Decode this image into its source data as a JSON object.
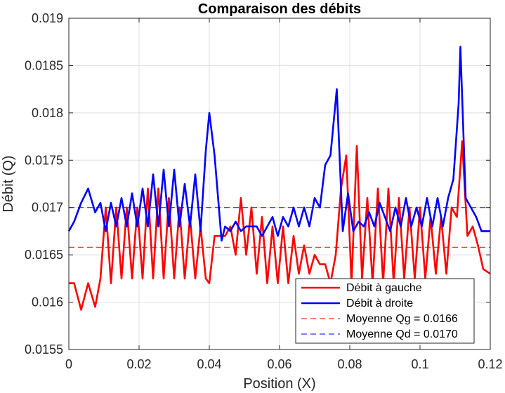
{
  "chart_data": {
    "type": "line",
    "title": "Comparaison des débits",
    "xlabel": "Position (X)",
    "ylabel": "Débit (Q)",
    "xlim": [
      0,
      0.12
    ],
    "ylim": [
      0.0155,
      0.019
    ],
    "xticks": [
      0,
      0.02,
      0.04,
      0.06,
      0.08,
      0.1,
      0.12
    ],
    "xtick_labels": [
      "0",
      "0.02",
      "0.04",
      "0.06",
      "0.08",
      "0.1",
      "0.12"
    ],
    "yticks": [
      0.0155,
      0.016,
      0.0165,
      0.017,
      0.0175,
      0.018,
      0.0185,
      0.019
    ],
    "ytick_labels": [
      "0.0155",
      "0.016",
      "0.0165",
      "0.017",
      "0.0175",
      "0.018",
      "0.0185",
      "0.019"
    ],
    "grid": true,
    "legend_position": "bottom-right",
    "series": [
      {
        "name": "Débit à gauche",
        "color": "#ff0000",
        "style": "solid",
        "x": [
          0,
          0.0015,
          0.0035,
          0.0055,
          0.0075,
          0.009,
          0.0105,
          0.012,
          0.0135,
          0.015,
          0.0165,
          0.018,
          0.0195,
          0.021,
          0.0225,
          0.024,
          0.0255,
          0.027,
          0.0285,
          0.03,
          0.0315,
          0.033,
          0.0345,
          0.036,
          0.0375,
          0.039,
          0.04,
          0.0415,
          0.043,
          0.0445,
          0.046,
          0.0475,
          0.049,
          0.0505,
          0.052,
          0.0535,
          0.055,
          0.0565,
          0.058,
          0.0595,
          0.061,
          0.0625,
          0.064,
          0.0655,
          0.067,
          0.0685,
          0.07,
          0.0715,
          0.073,
          0.0745,
          0.076,
          0.0775,
          0.079,
          0.0805,
          0.082,
          0.0835,
          0.085,
          0.0865,
          0.088,
          0.0895,
          0.091,
          0.0925,
          0.094,
          0.0955,
          0.097,
          0.0985,
          0.1,
          0.1015,
          0.103,
          0.1045,
          0.106,
          0.1075,
          0.109,
          0.1105,
          0.112,
          0.1135,
          0.115,
          0.1165,
          0.118,
          0.12
        ],
        "y": [
          0.0162,
          0.0162,
          0.01592,
          0.0162,
          0.01595,
          0.01625,
          0.017,
          0.0162,
          0.017,
          0.01625,
          0.017,
          0.01625,
          0.017,
          0.01625,
          0.0172,
          0.01625,
          0.0172,
          0.01625,
          0.0171,
          0.01625,
          0.017,
          0.01625,
          0.0169,
          0.01625,
          0.0168,
          0.01625,
          0.0162,
          0.0167,
          0.0167,
          0.0167,
          0.0168,
          0.0165,
          0.0171,
          0.0165,
          0.017,
          0.0163,
          0.0169,
          0.0162,
          0.0168,
          0.0162,
          0.0168,
          0.0162,
          0.0167,
          0.0163,
          0.0166,
          0.0163,
          0.0165,
          0.0164,
          0.0164,
          0.0162,
          0.0165,
          0.0172,
          0.01755,
          0.0162,
          0.01765,
          0.01625,
          0.0171,
          0.0162,
          0.0172,
          0.0162,
          0.0172,
          0.0162,
          0.0171,
          0.01625,
          0.017,
          0.01625,
          0.017,
          0.01625,
          0.0169,
          0.0163,
          0.0169,
          0.0163,
          0.017,
          0.0169,
          0.0177,
          0.0167,
          0.0168,
          0.0166,
          0.01635,
          0.0163
        ]
      },
      {
        "name": "Débit à droite",
        "color": "#0000ff",
        "style": "solid",
        "x": [
          0,
          0.0015,
          0.0035,
          0.0055,
          0.0075,
          0.009,
          0.0105,
          0.012,
          0.0135,
          0.015,
          0.0165,
          0.018,
          0.0195,
          0.021,
          0.0225,
          0.024,
          0.0255,
          0.027,
          0.0285,
          0.03,
          0.0315,
          0.033,
          0.0345,
          0.036,
          0.0375,
          0.039,
          0.04,
          0.0415,
          0.0435,
          0.0445,
          0.046,
          0.0475,
          0.049,
          0.0505,
          0.052,
          0.0535,
          0.055,
          0.0565,
          0.058,
          0.0595,
          0.061,
          0.0625,
          0.064,
          0.0655,
          0.067,
          0.0685,
          0.07,
          0.0715,
          0.073,
          0.0745,
          0.0763,
          0.078,
          0.0795,
          0.081,
          0.0825,
          0.084,
          0.0855,
          0.087,
          0.0885,
          0.09,
          0.0915,
          0.093,
          0.0945,
          0.096,
          0.0975,
          0.099,
          0.1005,
          0.102,
          0.1035,
          0.105,
          0.1065,
          0.108,
          0.1095,
          0.111,
          0.1115,
          0.113,
          0.1145,
          0.116,
          0.1175,
          0.12
        ],
        "y": [
          0.01675,
          0.01685,
          0.01705,
          0.0172,
          0.01695,
          0.01705,
          0.01675,
          0.01705,
          0.0168,
          0.0171,
          0.0168,
          0.01715,
          0.0168,
          0.0172,
          0.0168,
          0.01735,
          0.0168,
          0.0174,
          0.0168,
          0.0174,
          0.0168,
          0.01725,
          0.0168,
          0.01735,
          0.01675,
          0.0176,
          0.018,
          0.01755,
          0.01665,
          0.0168,
          0.01675,
          0.01685,
          0.01675,
          0.0168,
          0.0168,
          0.0168,
          0.0167,
          0.0168,
          0.0169,
          0.0167,
          0.0169,
          0.0168,
          0.017,
          0.0168,
          0.017,
          0.0168,
          0.0171,
          0.017,
          0.01745,
          0.01755,
          0.01825,
          0.01675,
          0.01715,
          0.01675,
          0.01685,
          0.0168,
          0.01695,
          0.0168,
          0.01705,
          0.0169,
          0.01675,
          0.017,
          0.0168,
          0.0171,
          0.0168,
          0.017,
          0.0168,
          0.0171,
          0.0168,
          0.0171,
          0.0168,
          0.0171,
          0.0173,
          0.0181,
          0.0187,
          0.0171,
          0.017,
          0.0169,
          0.01675,
          0.01675
        ]
      },
      {
        "name": "Moyenne Qg = 0.0166",
        "color": "#ff0000",
        "style": "dashed",
        "x": [
          0,
          0.12
        ],
        "y": [
          0.01658,
          0.01658
        ]
      },
      {
        "name": "Moyenne Qd = 0.0170",
        "color": "#0000ff",
        "style": "dashed",
        "x": [
          0,
          0.12
        ],
        "y": [
          0.017,
          0.017
        ]
      }
    ]
  }
}
